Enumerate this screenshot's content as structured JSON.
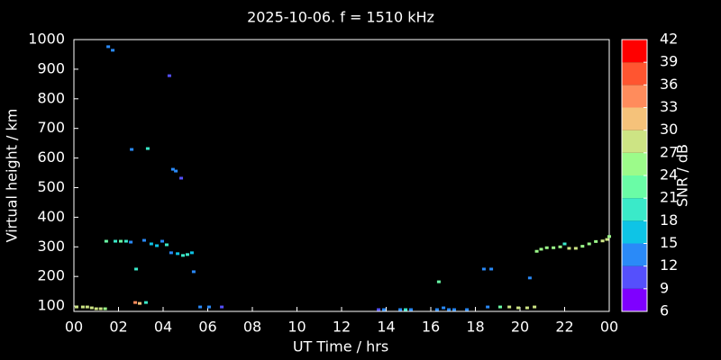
{
  "chart_data": {
    "type": "scatter",
    "title": "2025-10-06. f = 1510 kHz",
    "x_label": "UT Time / hrs",
    "y_label": "Virtual height / km",
    "xlim": [
      0,
      24
    ],
    "xticks": [
      {
        "value": 0,
        "label": "00"
      },
      {
        "value": 2,
        "label": "02"
      },
      {
        "value": 4,
        "label": "04"
      },
      {
        "value": 6,
        "label": "06"
      },
      {
        "value": 8,
        "label": "08"
      },
      10,
      12,
      14,
      16,
      18,
      20,
      22,
      {
        "value": 24,
        "label": "00"
      }
    ],
    "ylim": [
      82,
      1000
    ],
    "yticks": [
      100,
      200,
      300,
      400,
      500,
      600,
      700,
      800,
      900,
      1000
    ],
    "x": [
      1.54,
      1.74,
      4.28,
      2.59,
      3.31,
      4.44,
      4.57,
      4.81,
      1.45,
      1.86,
      2.1,
      2.34,
      2.55,
      3.15,
      3.47,
      3.72,
      3.96,
      4.16,
      4.36,
      4.65,
      4.89,
      5.09,
      5.29,
      5.37,
      2.79,
      2.75,
      2.95,
      3.23,
      0.12,
      0.4,
      0.6,
      0.8,
      1.0,
      1.2,
      1.4,
      5.66,
      6.06,
      6.63,
      13.66,
      13.9,
      14.63,
      14.87,
      15.11,
      16.28,
      16.57,
      16.81,
      17.05,
      17.62,
      16.36,
      18.38,
      18.71,
      18.55,
      19.11,
      19.52,
      19.92,
      20.32,
      20.65,
      20.44,
      20.75,
      20.95,
      21.2,
      21.5,
      21.8,
      22.0,
      22.2,
      22.5,
      22.8,
      23.1,
      23.4,
      23.7,
      23.9,
      24
    ],
    "y": [
      976,
      964,
      878,
      629,
      632,
      562,
      556,
      532,
      319,
      319,
      319,
      319,
      316,
      322,
      310,
      304,
      319,
      307,
      280,
      277,
      271,
      274,
      280,
      216,
      225,
      112,
      109,
      112,
      97,
      97,
      97,
      94,
      91,
      91,
      91,
      97,
      97,
      97,
      88,
      88,
      88,
      88,
      88,
      88,
      94,
      88,
      88,
      88,
      182,
      225,
      225,
      97,
      97,
      97,
      94,
      94,
      97,
      195,
      285,
      292,
      297,
      297,
      300,
      310,
      295,
      295,
      302,
      310,
      318,
      320,
      325,
      335
    ],
    "snr": [
      12,
      12,
      10,
      12,
      19,
      12,
      12,
      11,
      23,
      20,
      21,
      20,
      14,
      14,
      17,
      15,
      13,
      18,
      14,
      16,
      18,
      18,
      17,
      12,
      18,
      33,
      30,
      18,
      27,
      27,
      27,
      27,
      28,
      27,
      24,
      12,
      12,
      11,
      11,
      12,
      14,
      20,
      14,
      13,
      12,
      14,
      14,
      12,
      23,
      12,
      12,
      14,
      23,
      27,
      27,
      28,
      27,
      12,
      24,
      25,
      24,
      25,
      26,
      18,
      27,
      27,
      26,
      25,
      26,
      27,
      27,
      26
    ],
    "colorbar": {
      "label": "SNR / dB",
      "lim": [
        6,
        42
      ],
      "ticks": [
        6,
        9,
        12,
        15,
        18,
        21,
        24,
        27,
        30,
        33,
        36,
        39,
        42
      ],
      "colors": [
        "#7f00ff",
        "#5550fc",
        "#2a8af8",
        "#0ec4e6",
        "#3aeac9",
        "#6afca6",
        "#9cfb8a",
        "#cde484",
        "#f5c27a",
        "#ff8c5c",
        "#ff5530",
        "#ff0000"
      ]
    }
  }
}
